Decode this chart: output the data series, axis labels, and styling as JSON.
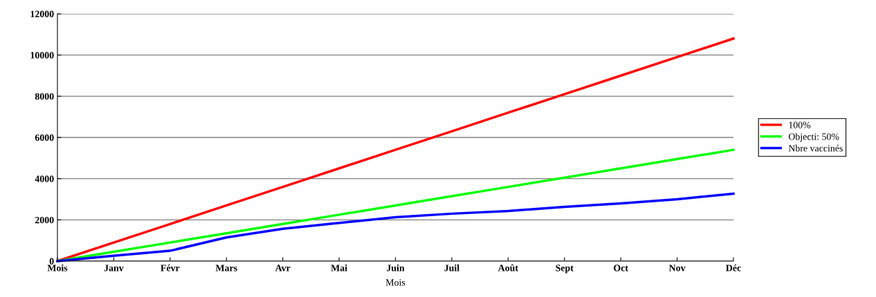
{
  "chart_data": {
    "type": "line",
    "xlabel": "Mois",
    "categories": [
      "Mois",
      "Janv",
      "Févr",
      "Mars",
      "Avr",
      "Mai",
      "Juin",
      "Juil",
      "Août",
      "Sept",
      "Oct",
      "Nov",
      "Déc"
    ],
    "series": [
      {
        "name": "100%",
        "color": "#ff0000",
        "values": [
          0,
          900,
          1800,
          2700,
          3600,
          4500,
          5400,
          6300,
          7200,
          8100,
          9000,
          9900,
          10800
        ]
      },
      {
        "name": "Objecti: 50%",
        "color": "#00ff00",
        "values": [
          0,
          450,
          900,
          1350,
          1800,
          2250,
          2700,
          3150,
          3600,
          4050,
          4500,
          4950,
          5400
        ]
      },
      {
        "name": "Nbre vaccinés",
        "color": "#0000ff",
        "values": [
          0,
          260,
          500,
          1150,
          1570,
          1850,
          2130,
          2300,
          2430,
          2630,
          2800,
          3000,
          3270
        ]
      }
    ],
    "ylim": [
      0,
      12000
    ],
    "yticks": [
      0,
      2000,
      4000,
      6000,
      8000,
      10000,
      12000
    ],
    "grid": "y",
    "legend": "right",
    "marker": "none",
    "line_style": "solid"
  }
}
